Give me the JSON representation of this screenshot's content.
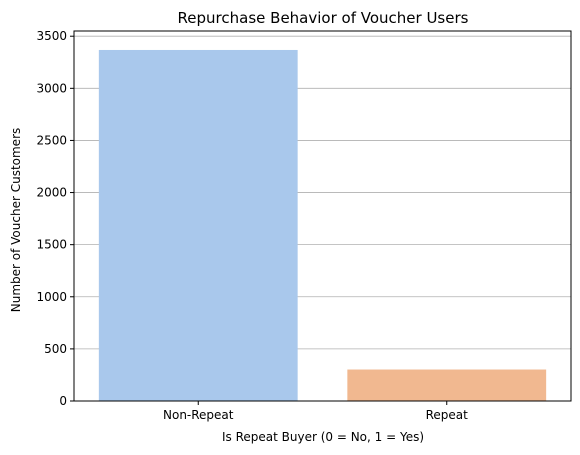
{
  "chart_data": {
    "type": "bar",
    "title": "Repurchase Behavior of Voucher Users",
    "xlabel": "Is Repeat Buyer (0 = No, 1 = Yes)",
    "ylabel": "Number of Voucher Customers",
    "categories": [
      "Non-Repeat",
      "Repeat"
    ],
    "values": [
      3368,
      302
    ],
    "colors": [
      "#a9c8ec",
      "#f1b890"
    ],
    "ylim": [
      0,
      3550
    ],
    "yticks": [
      0,
      500,
      1000,
      1500,
      2000,
      2500,
      3000,
      3500
    ],
    "grid": "horizontal",
    "legend": "none"
  }
}
